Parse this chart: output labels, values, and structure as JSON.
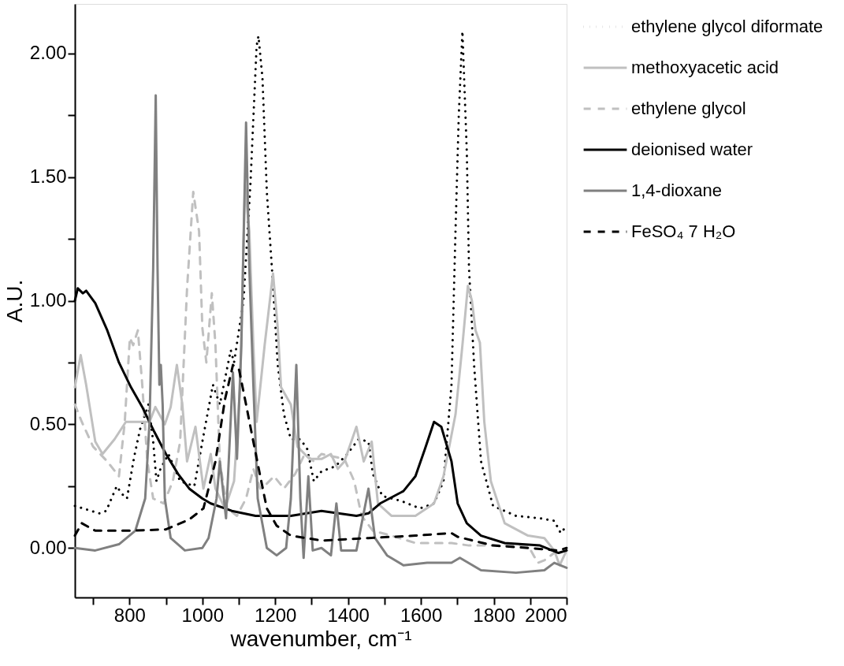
{
  "chart_data": {
    "type": "line",
    "xlabel": "wavenumber, cm⁻¹",
    "ylabel": "A.U.",
    "xlim": [
      650,
      2000
    ],
    "ylim": [
      -0.2,
      2.2
    ],
    "xticks": [
      {
        "value": 700,
        "label": null
      },
      800,
      {
        "value": 900,
        "label": null
      },
      1000,
      {
        "value": 1100,
        "label": null
      },
      1200,
      {
        "value": 1300,
        "label": null
      },
      1400,
      {
        "value": 1500,
        "label": null
      },
      1600,
      {
        "value": 1700,
        "label": null
      },
      1800,
      {
        "value": 1900,
        "label": null
      },
      2000
    ],
    "yticks": [
      {
        "value": 0,
        "label": "0.00"
      },
      {
        "value": 0.25,
        "label": null
      },
      {
        "value": 0.5,
        "label": "0.50"
      },
      {
        "value": 0.75,
        "label": null
      },
      {
        "value": 1,
        "label": "1.00"
      },
      {
        "value": 1.25,
        "label": null
      },
      {
        "value": 1.5,
        "label": "1.50"
      },
      {
        "value": 1.75,
        "label": null
      },
      {
        "value": 2,
        "label": "2.00"
      }
    ],
    "grid": false,
    "legend": "top right",
    "series": [
      {
        "name": "ethylene glycol diformate",
        "color": "#000000",
        "line_style": "dotted",
        "x": [
          650,
          717,
          736,
          765,
          778,
          793,
          813,
          829,
          852,
          865,
          874,
          885,
          907,
          939,
          978,
          1000,
          1029,
          1048,
          1078,
          1087,
          1113,
          1132,
          1149,
          1154,
          1165,
          1177,
          1191,
          1207,
          1224,
          1243,
          1269,
          1288,
          1306,
          1327,
          1365,
          1398,
          1429,
          1456,
          1468,
          1494,
          1546,
          1597,
          1636,
          1662,
          1684,
          1695,
          1704,
          1714,
          1726,
          1732,
          1746,
          1765,
          1798,
          1861,
          1927,
          1966,
          1984,
          2000
        ],
        "values": [
          0.17,
          0.14,
          0.15,
          0.25,
          0.22,
          0.2,
          0.37,
          0.48,
          0.58,
          0.43,
          0.27,
          0.32,
          0.38,
          0.27,
          0.25,
          0.43,
          0.66,
          0.58,
          0.8,
          0.75,
          1.0,
          1.47,
          2.03,
          2.07,
          1.9,
          1.44,
          1.13,
          0.74,
          0.54,
          0.44,
          0.44,
          0.4,
          0.27,
          0.31,
          0.33,
          0.38,
          0.44,
          0.43,
          0.3,
          0.21,
          0.19,
          0.16,
          0.18,
          0.27,
          0.66,
          1.28,
          1.75,
          2.09,
          1.6,
          1.13,
          0.74,
          0.35,
          0.17,
          0.13,
          0.12,
          0.11,
          0.06,
          0.09
        ]
      },
      {
        "name": "methoxyacetic acid",
        "color": "#c0c0c0",
        "line_style": "solid",
        "x": [
          650,
          666,
          681,
          706,
          726,
          759,
          790,
          835,
          855,
          871,
          897,
          913,
          930,
          945,
          958,
          981,
          1003,
          1023,
          1036,
          1062,
          1087,
          1104,
          1117,
          1129,
          1140,
          1149,
          1171,
          1194,
          1207,
          1216,
          1243,
          1261,
          1294,
          1327,
          1353,
          1372,
          1390,
          1423,
          1443,
          1465,
          1482,
          1519,
          1585,
          1636,
          1662,
          1695,
          1714,
          1729,
          1740,
          1750,
          1762,
          1774,
          1792,
          1830,
          1894,
          1939,
          1966,
          1981,
          2000
        ],
        "values": [
          0.65,
          0.78,
          0.66,
          0.43,
          0.38,
          0.44,
          0.51,
          0.51,
          0.51,
          0.57,
          0.5,
          0.57,
          0.74,
          0.58,
          0.35,
          0.49,
          0.24,
          0.38,
          0.24,
          0.16,
          0.27,
          0.66,
          1.47,
          1.28,
          0.82,
          0.51,
          0.82,
          1.11,
          0.89,
          0.65,
          0.58,
          0.41,
          0.36,
          0.36,
          0.38,
          0.32,
          0.35,
          0.49,
          0.35,
          0.43,
          0.18,
          0.13,
          0.13,
          0.18,
          0.29,
          0.54,
          0.82,
          1.06,
          1.0,
          0.88,
          0.83,
          0.51,
          0.27,
          0.1,
          0.05,
          0.04,
          -0.01,
          -0.07,
          -0.01
        ]
      },
      {
        "name": "ethylene glycol",
        "color": "#c0c0c0",
        "line_style": "dashed",
        "x": [
          650,
          669,
          700,
          739,
          771,
          787,
          801,
          810,
          823,
          835,
          849,
          865,
          894,
          919,
          939,
          958,
          975,
          991,
          1000,
          1011,
          1026,
          1036,
          1048,
          1068,
          1095,
          1120,
          1140,
          1159,
          1177,
          1197,
          1224,
          1255,
          1281,
          1306,
          1327,
          1390,
          1417,
          1437,
          1468,
          1519,
          1585,
          1684,
          1732,
          1830,
          1894,
          1921,
          1939,
          1966,
          1991
        ],
        "values": [
          0.58,
          0.51,
          0.41,
          0.35,
          0.29,
          0.51,
          0.85,
          0.82,
          0.88,
          0.66,
          0.35,
          0.2,
          0.18,
          0.27,
          0.43,
          1.05,
          1.44,
          1.28,
          0.89,
          0.75,
          1.03,
          0.82,
          0.35,
          0.16,
          0.13,
          0.2,
          0.32,
          0.24,
          0.26,
          0.29,
          0.24,
          0.3,
          0.38,
          0.35,
          0.38,
          0.36,
          0.27,
          0.13,
          0.07,
          0.05,
          0.02,
          0.02,
          0.01,
          0.01,
          0.01,
          -0.06,
          -0.05,
          -0.02,
          -0.02
        ]
      },
      {
        "name": "deionised water",
        "color": "#000000",
        "line_style": "solid",
        "x": [
          650,
          658,
          672,
          681,
          706,
          739,
          771,
          804,
          835,
          868,
          900,
          933,
          964,
          1000,
          1023,
          1081,
          1146,
          1243,
          1327,
          1423,
          1456,
          1488,
          1552,
          1585,
          1611,
          1636,
          1656,
          1684,
          1701,
          1726,
          1765,
          1830,
          1927,
          1978,
          2000
        ],
        "values": [
          1.0,
          1.05,
          1.03,
          1.04,
          0.99,
          0.88,
          0.75,
          0.65,
          0.57,
          0.47,
          0.38,
          0.3,
          0.24,
          0.2,
          0.18,
          0.15,
          0.13,
          0.13,
          0.15,
          0.13,
          0.14,
          0.18,
          0.23,
          0.29,
          0.4,
          0.51,
          0.49,
          0.35,
          0.18,
          0.1,
          0.05,
          0.02,
          0.01,
          -0.02,
          -0.01
        ]
      },
      {
        "name": "1,4-dioxane",
        "color": "#808080",
        "line_style": "solid",
        "x": [
          650,
          706,
          771,
          816,
          843,
          855,
          865,
          872,
          877,
          882,
          886,
          891,
          897,
          913,
          952,
          1000,
          1017,
          1039,
          1048,
          1065,
          1084,
          1095,
          1107,
          1120,
          1129,
          1140,
          1152,
          1177,
          1204,
          1230,
          1243,
          1258,
          1269,
          1278,
          1291,
          1303,
          1327,
          1353,
          1368,
          1381,
          1423,
          1456,
          1474,
          1507,
          1552,
          1617,
          1684,
          1707,
          1765,
          1861,
          1939,
          1966,
          2000
        ],
        "values": [
          0,
          -0.01,
          0.015,
          0.07,
          0.2,
          0.51,
          1.13,
          1.83,
          1.13,
          0.66,
          0.74,
          0.58,
          0.2,
          0.04,
          -0.01,
          0,
          0.04,
          0.2,
          0.35,
          0.12,
          0.71,
          0.36,
          0.82,
          1.72,
          1.13,
          0.66,
          0.2,
          0,
          -0.03,
          0,
          0.2,
          0.74,
          0.2,
          -0.04,
          0.29,
          -0.01,
          0,
          -0.03,
          0.18,
          -0.01,
          -0.01,
          0.24,
          0.04,
          -0.03,
          -0.07,
          -0.06,
          -0.06,
          -0.04,
          -0.09,
          -0.1,
          -0.09,
          -0.06,
          -0.08
        ]
      },
      {
        "name": "FeSO₄ 7 H₂O",
        "color": "#000000",
        "line_style": "dashed",
        "x": [
          650,
          669,
          706,
          804,
          900,
          964,
          1003,
          1036,
          1062,
          1084,
          1101,
          1120,
          1140,
          1159,
          1177,
          1204,
          1243,
          1327,
          1456,
          1585,
          1684,
          1701,
          1798,
          1894,
          1978,
          2000
        ],
        "values": [
          0.05,
          0.1,
          0.07,
          0.07,
          0.075,
          0.115,
          0.16,
          0.35,
          0.6,
          0.74,
          0.72,
          0.58,
          0.43,
          0.29,
          0.16,
          0.09,
          0.05,
          0.03,
          0.04,
          0.05,
          0.06,
          0.045,
          0.01,
          0,
          -0.01,
          0
        ]
      }
    ]
  }
}
